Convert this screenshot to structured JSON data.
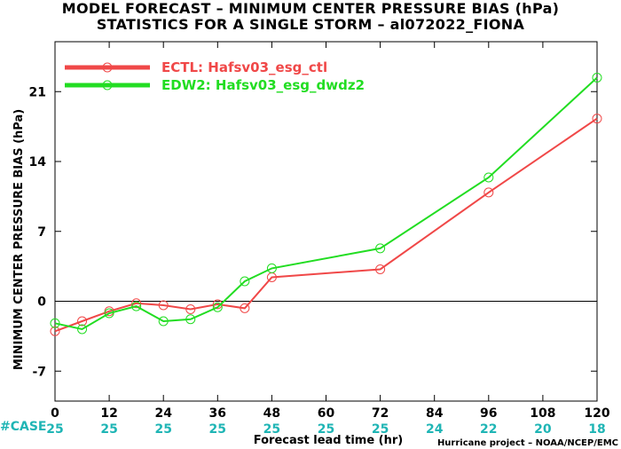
{
  "header": {
    "title_line1": "MODEL FORECAST – MINIMUM CENTER PRESSURE BIAS (hPa)",
    "title_line2": "STATISTICS FOR A SINGLE STORM – al072022_FIONA"
  },
  "footer": {
    "credit": "Hurricane project – NOAA/NCEP/EMC",
    "case_label": "#CASE"
  },
  "colors": {
    "series1": "#f04848",
    "series2": "#22dd22",
    "case_text": "#1fb5b5",
    "zero_line": "#000000"
  },
  "chart_data": {
    "type": "line",
    "xlabel": "Forecast lead time (hr)",
    "ylabel": "MINIMUM CENTER PRESSURE BIAS (hPa)",
    "xlim": [
      0,
      120
    ],
    "ylim": [
      -10,
      26
    ],
    "xticks": [
      0,
      12,
      24,
      36,
      48,
      60,
      72,
      84,
      96,
      108,
      120
    ],
    "yticks": [
      -7,
      0,
      7,
      14,
      21
    ],
    "grid": false,
    "legend_position": "top-left",
    "case_counts": {
      "x": [
        0,
        12,
        24,
        36,
        48,
        60,
        72,
        84,
        96,
        108,
        120
      ],
      "values": [
        25,
        25,
        25,
        25,
        25,
        25,
        25,
        24,
        22,
        20,
        18
      ]
    },
    "series": [
      {
        "name": "ECTL: Hafsv03_esg_ctl",
        "x": [
          0,
          6,
          12,
          18,
          24,
          30,
          36,
          42,
          48,
          72,
          96,
          120
        ],
        "values": [
          -3.0,
          -2.0,
          -1.0,
          -0.2,
          -0.4,
          -0.8,
          -0.3,
          -0.7,
          2.4,
          3.2,
          10.9,
          18.3
        ]
      },
      {
        "name": "EDW2: Hafsv03_esg_dwdz2",
        "x": [
          0,
          6,
          12,
          18,
          24,
          30,
          36,
          42,
          48,
          72,
          96,
          120
        ],
        "values": [
          -2.2,
          -2.8,
          -1.2,
          -0.5,
          -2.0,
          -1.8,
          -0.6,
          2.0,
          3.3,
          5.3,
          12.4,
          22.4
        ]
      }
    ]
  }
}
